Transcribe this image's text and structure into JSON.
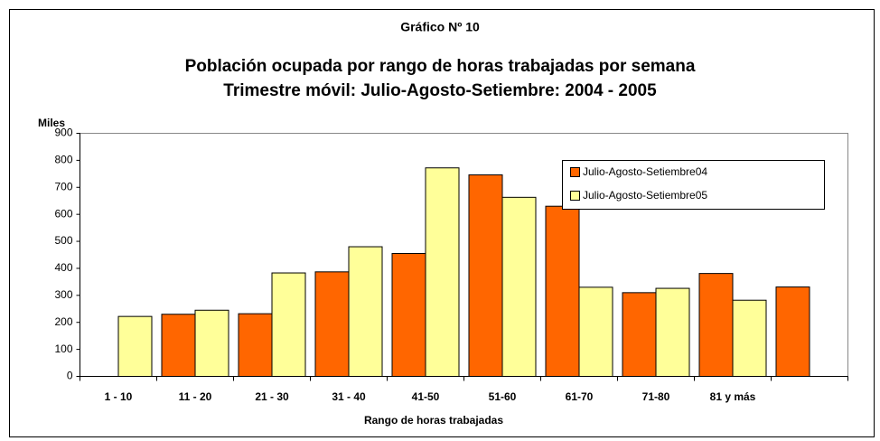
{
  "chart_data": {
    "type": "bar",
    "supertitle": "Gráfico Nº 10",
    "title": "Población ocupada por rango de horas trabajadas por semana",
    "subtitle": "Trimestre móvil: Julio-Agosto-Setiembre: 2004 -  2005",
    "y_label": "Miles",
    "x_label": "Rango de horas trabajadas",
    "categories": [
      "1 - 10",
      "11 - 20",
      "21 - 30",
      "31 - 40",
      "41-50",
      "51-60",
      "61-70",
      "71-80",
      "81 y más",
      null
    ],
    "series": [
      {
        "name": "Julio-Agosto-Setiembre04",
        "color": "#ff6600",
        "values": [
          null,
          230,
          232,
          387,
          455,
          746,
          630,
          310,
          381,
          331
        ]
      },
      {
        "name": "Julio-Agosto-Setiembre05",
        "color": "#ffff99",
        "values": [
          222,
          245,
          383,
          480,
          772,
          663,
          330,
          326,
          282,
          null
        ]
      }
    ],
    "ylim": [
      0,
      900
    ],
    "yticks": [
      0,
      100,
      200,
      300,
      400,
      500,
      600,
      700,
      800,
      900
    ],
    "grid": false,
    "legend": "upper right"
  }
}
